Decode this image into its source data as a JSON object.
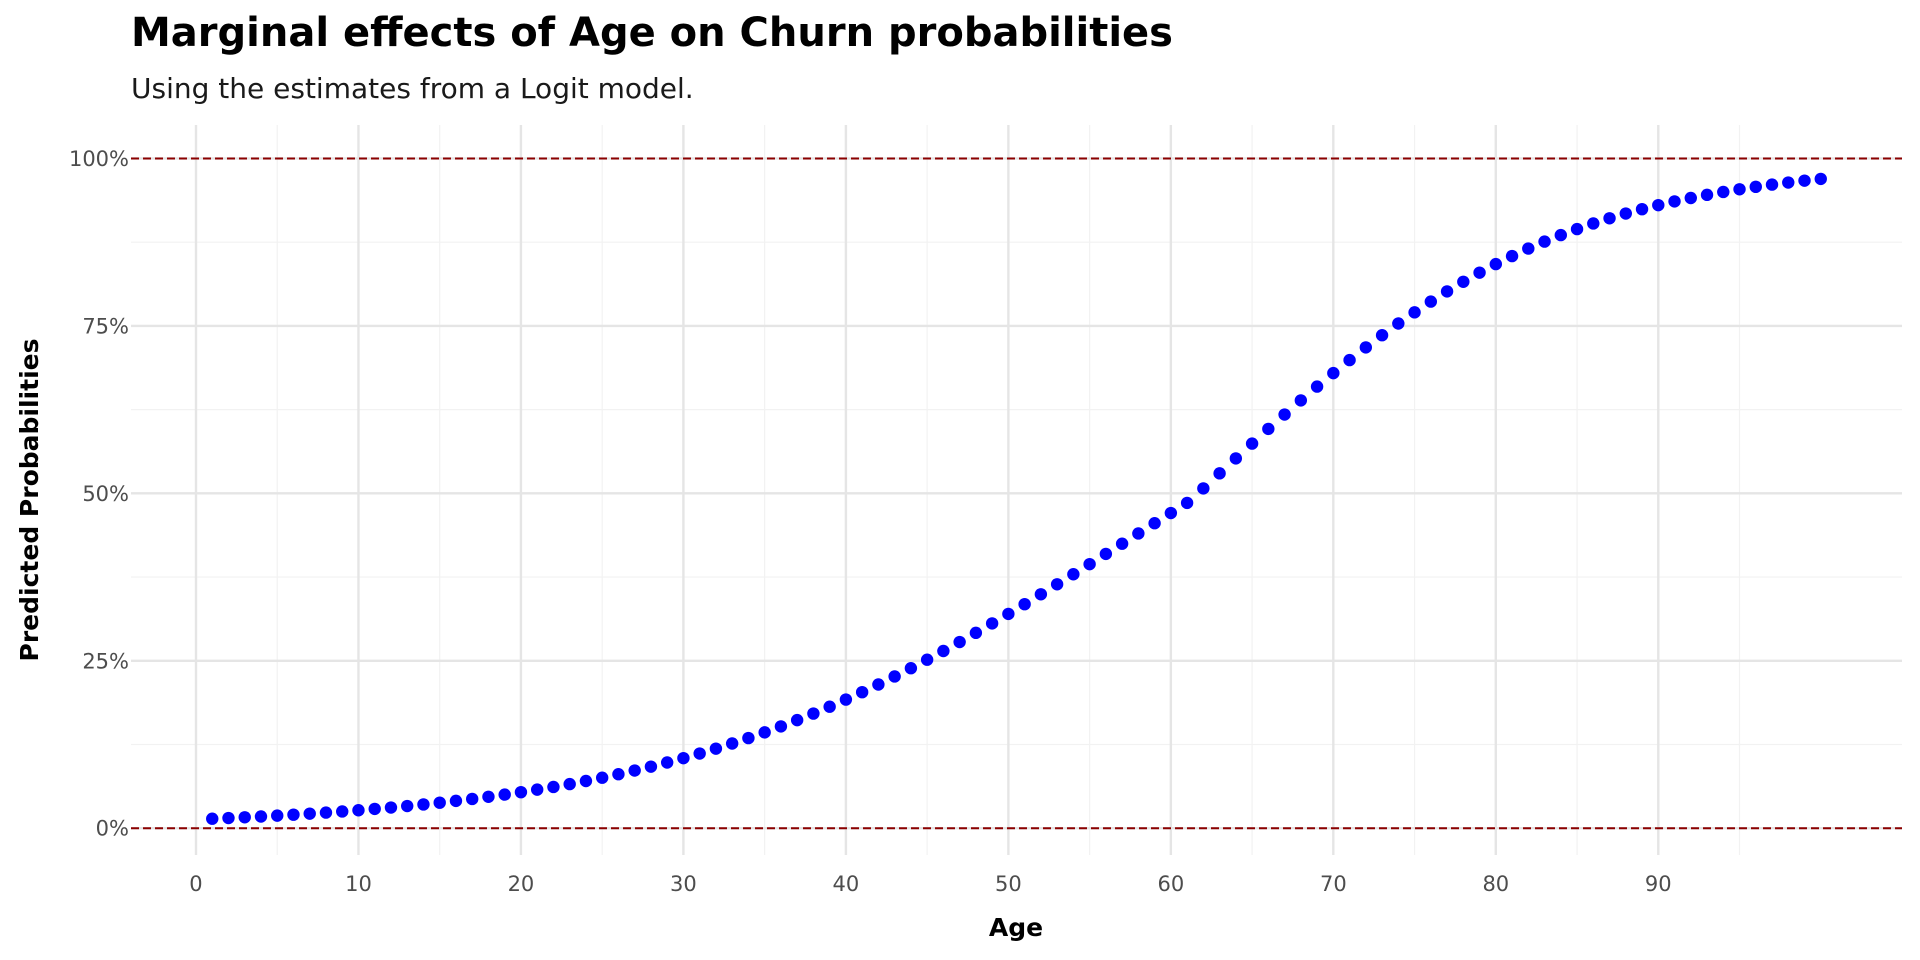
{
  "chart_data": {
    "type": "scatter",
    "title": "Marginal effects of Age on Churn probabilities",
    "subtitle": "Using the estimates from a Logit model.",
    "xlabel": "Age",
    "ylabel": "Predicted Probabilities",
    "xlim": [
      -4,
      105
    ],
    "ylim": [
      -0.04,
      1.05
    ],
    "x_ticks": [
      0,
      10,
      20,
      30,
      40,
      50,
      60,
      70,
      80,
      90
    ],
    "x_tick_labels": [
      "0",
      "10",
      "20",
      "30",
      "40",
      "50",
      "60",
      "70",
      "80",
      "90"
    ],
    "y_ticks": [
      0,
      0.25,
      0.5,
      0.75,
      1.0
    ],
    "y_tick_labels": [
      "0%",
      "25%",
      "50%",
      "75%",
      "100%"
    ],
    "reference_lines": [
      0,
      1
    ],
    "reference_line_color": "#8b0000",
    "point_color": "#0000ff",
    "grid": true,
    "grid_color": "#e5e5e5",
    "series": [
      {
        "x": [
          1,
          2,
          3,
          4,
          5,
          6,
          7,
          8,
          9,
          10,
          11,
          12,
          13,
          14,
          15,
          16,
          17,
          18,
          19,
          20,
          21,
          22,
          23,
          24,
          25,
          26,
          27,
          28,
          29,
          30,
          31,
          32,
          33,
          34,
          35,
          36,
          37,
          38,
          39,
          40,
          41,
          42,
          43,
          44,
          45,
          46,
          47,
          48,
          49,
          50,
          51,
          52,
          53,
          54,
          55,
          56,
          57,
          58,
          59,
          60,
          61,
          62,
          63,
          64,
          65,
          66,
          67,
          68,
          69,
          70,
          71,
          72,
          73,
          74,
          75,
          76,
          77,
          78,
          79,
          80,
          81,
          82,
          83,
          84,
          85,
          86,
          87,
          88,
          89,
          90,
          91,
          92,
          93,
          94,
          95,
          96,
          97,
          98,
          99,
          100
        ],
        "y": [
          0.0142,
          0.0152,
          0.0163,
          0.0175,
          0.0188,
          0.0202,
          0.0217,
          0.0233,
          0.025,
          0.0268,
          0.0288,
          0.0309,
          0.0331,
          0.0355,
          0.0381,
          0.0408,
          0.0437,
          0.0469,
          0.0502,
          0.0538,
          0.0576,
          0.0616,
          0.0659,
          0.0705,
          0.0754,
          0.0806,
          0.0861,
          0.0919,
          0.0981,
          0.1046,
          0.1115,
          0.1188,
          0.1265,
          0.1346,
          0.1431,
          0.152,
          0.1614,
          0.1712,
          0.1814,
          0.1921,
          0.2031,
          0.2146,
          0.2266,
          0.2389,
          0.2516,
          0.2646,
          0.278,
          0.2917,
          0.3058,
          0.32,
          0.3345,
          0.3493,
          0.3642,
          0.3792,
          0.3943,
          0.4096,
          0.4248,
          0.4401,
          0.4554,
          0.4706,
          0.4857,
          0.5074,
          0.5299,
          0.5522,
          0.5743,
          0.5962,
          0.6177,
          0.6388,
          0.6594,
          0.6795,
          0.699,
          0.7179,
          0.7361,
          0.7536,
          0.7703,
          0.7863,
          0.8015,
          0.8159,
          0.8295,
          0.8423,
          0.8543,
          0.8655,
          0.8759,
          0.8856,
          0.8946,
          0.903,
          0.9107,
          0.9178,
          0.9243,
          0.9303,
          0.9359,
          0.941,
          0.9457,
          0.95,
          0.954,
          0.9577,
          0.961,
          0.9641,
          0.9669,
          0.9695
        ]
      }
    ]
  }
}
